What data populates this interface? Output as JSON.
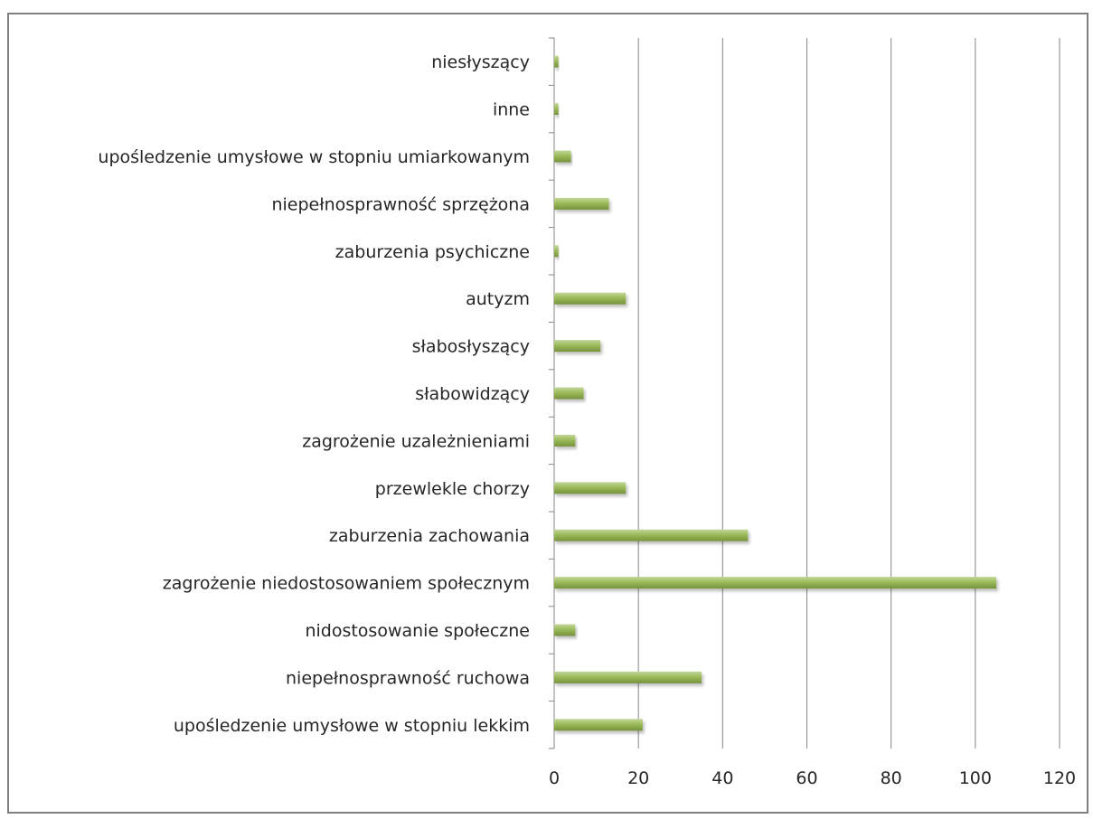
{
  "chart_data": {
    "type": "bar",
    "orientation": "horizontal",
    "title": "",
    "xlabel": "",
    "ylabel": "",
    "categories": [
      "upośledzenie umysłowe w stopniu lekkim",
      "niepełnosprawność ruchowa",
      "nidostosowanie społeczne",
      "zagrożenie niedostosowaniem społecznym",
      "zaburzenia zachowania",
      "przewlekle chorzy",
      "zagrożenie uzależnieniami",
      "słabowidzący",
      "słabosłyszący",
      "autyzm",
      "zaburzenia psychiczne",
      "niepełnosprawność sprzężona",
      "upośledzenie umysłowe w stopniu umiarkowanym",
      "inne",
      "niesłyszący"
    ],
    "values": [
      21,
      35,
      5,
      105,
      46,
      17,
      5,
      7,
      11,
      17,
      1,
      13,
      4,
      1,
      1
    ],
    "xlim": [
      0,
      120
    ],
    "ticks": [
      "0",
      "20",
      "40",
      "60",
      "80",
      "100",
      "120"
    ],
    "tick_values": [
      0,
      20,
      40,
      60,
      80,
      100,
      120
    ],
    "grid": "vertical major gridlines",
    "legend": "none",
    "colors": {
      "bar": "#9bbb59",
      "bar_highlight": "#c3d69b",
      "grid": "#868686",
      "axis": "#868686",
      "frame": "#7f7f7f"
    }
  }
}
